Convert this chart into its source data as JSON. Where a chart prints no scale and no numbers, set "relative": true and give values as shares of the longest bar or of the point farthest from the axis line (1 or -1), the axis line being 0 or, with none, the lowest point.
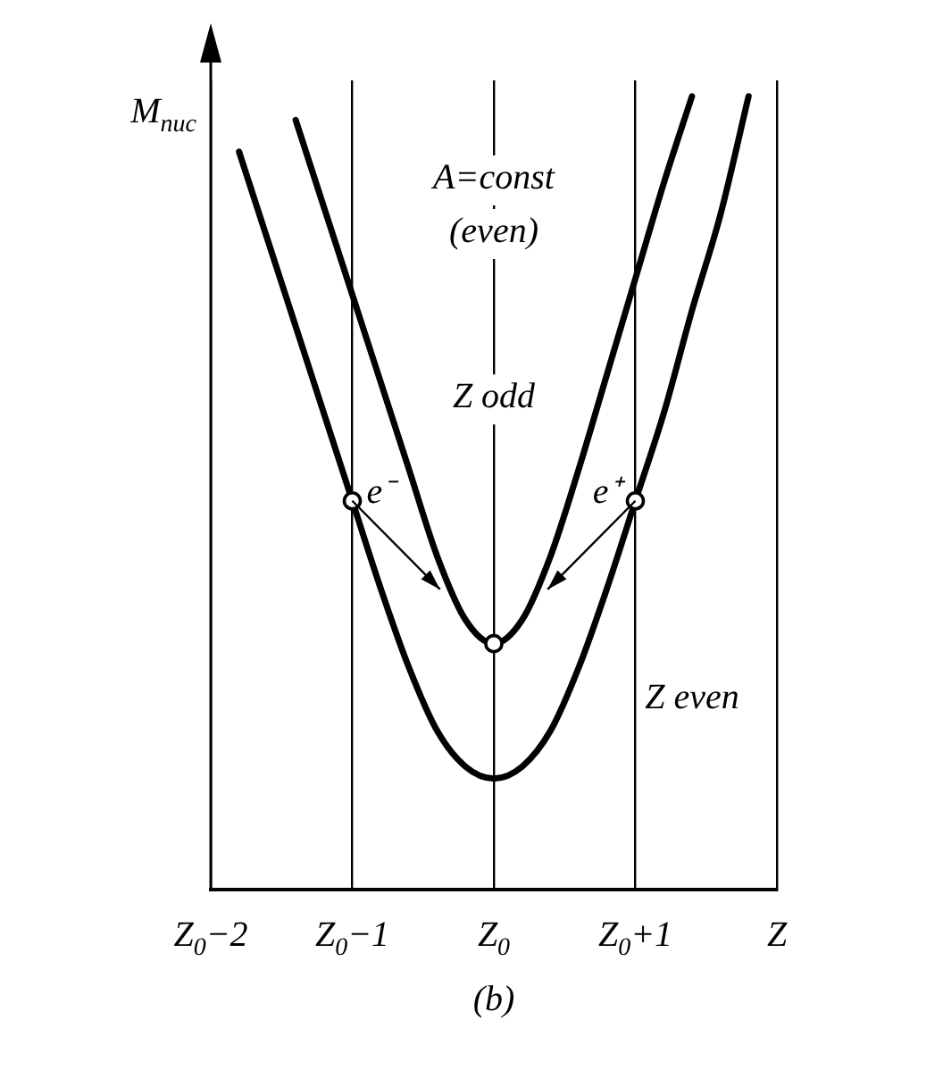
{
  "chart_data": {
    "type": "line",
    "relative": true,
    "ylabel": "M$_{nuc}$",
    "categories": [
      "Z$_{0}$−2",
      null,
      null,
      null,
      null,
      "Z$_{0}$−1",
      null,
      null,
      null,
      null,
      "Z$_{0}$",
      null,
      null,
      null,
      null,
      "Z$_{0}$+1",
      null,
      null,
      null,
      null,
      "Z"
    ],
    "grid": "x",
    "legend": false,
    "line_style": "solid",
    "series": [
      {
        "name": "Z odd",
        "color": "#000000",
        "marker": "none",
        "values": [
          null,
          null,
          null,
          0.97,
          0.86,
          0.75,
          0.64,
          0.53,
          0.42,
          0.34,
          0.31,
          0.34,
          0.42,
          0.53,
          0.65,
          0.77,
          0.89,
          1.0,
          null,
          null,
          null
        ]
      },
      {
        "name": "Z even",
        "color": "#000000",
        "marker": "none",
        "values": [
          null,
          0.93,
          0.82,
          0.71,
          0.6,
          0.49,
          0.38,
          0.28,
          0.2,
          0.155,
          0.14,
          0.155,
          0.2,
          0.28,
          0.38,
          0.49,
          0.6,
          0.73,
          0.85,
          1.0,
          null
        ]
      },
      {
        "type": "scatter",
        "color": "#000000",
        "marker": "circle",
        "values": [
          null,
          null,
          null,
          null,
          null,
          0.49,
          null,
          null,
          null,
          null,
          0.31,
          null,
          null,
          null,
          null,
          0.49,
          null,
          null,
          null,
          null,
          null
        ]
      }
    ],
    "annotations": [
      "A=const (even)",
      {
        "text": "e⁻",
        "x": "Z$_{0}$−1",
        "y": 0.49
      },
      {
        "text": "e⁺",
        "x": "Z$_{0}$+1",
        "y": 0.49
      },
      "(b)"
    ]
  }
}
